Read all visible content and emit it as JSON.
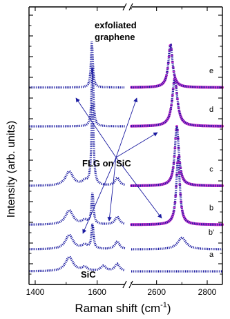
{
  "chart_data": {
    "type": "line",
    "xlabel": "Raman shift (cm",
    "xlabel_sup": "-1",
    "xlabel_close": ")",
    "ylabel": "Intensity (arb. units)",
    "x_axis_break": true,
    "segments": [
      {
        "xlim": [
          1380,
          1690
        ],
        "ticks": [
          1400,
          1600
        ]
      },
      {
        "xlim": [
          2500,
          2860
        ],
        "ticks": [
          2600,
          2800
        ]
      }
    ],
    "annotations": {
      "exfoliated_line1": "exfoliated",
      "exfoliated_line2": "graphene",
      "flg_on_sic": "FLG on SiC",
      "sic": "SiC"
    },
    "series": [
      {
        "name": "a",
        "offset": 0.0,
        "peaks1": [
          [
            1510,
            0.55,
            30
          ],
          [
            1560,
            0.15,
            20
          ],
          [
            1620,
            0.2,
            20
          ],
          [
            1665,
            0.28,
            18
          ]
        ],
        "peaks2": []
      },
      {
        "name": "b'",
        "offset": 0.85,
        "peaks1": [
          [
            1510,
            0.55,
            30
          ],
          [
            1560,
            0.15,
            20
          ],
          [
            1585,
            0.95,
            8
          ],
          [
            1665,
            0.3,
            18
          ]
        ],
        "peaks2": [
          [
            2700,
            0.45,
            40
          ]
        ]
      },
      {
        "name": "b",
        "offset": 1.8,
        "peaks1": [
          [
            1510,
            0.55,
            30
          ],
          [
            1560,
            0.15,
            20
          ],
          [
            1585,
            1.2,
            8
          ],
          [
            1665,
            0.3,
            18
          ]
        ],
        "peaks2": [
          [
            2685,
            2.6,
            17
          ]
        ]
      },
      {
        "name": "c",
        "offset": 3.3,
        "peaks1": [
          [
            1510,
            0.55,
            30
          ],
          [
            1560,
            0.15,
            20
          ],
          [
            1585,
            3.2,
            8
          ],
          [
            1665,
            0.3,
            18
          ]
        ],
        "peaks2": [
          [
            2680,
            2.3,
            19
          ]
        ]
      },
      {
        "name": "d",
        "offset": 5.6,
        "peaks1": [
          [
            1585,
            2.3,
            7
          ]
        ],
        "peaks2": [
          [
            2672,
            1.85,
            24
          ]
        ]
      },
      {
        "name": "e",
        "offset": 7.1,
        "peaks1": [
          [
            1583,
            1.8,
            7
          ]
        ],
        "peaks2": [
          [
            2655,
            1.65,
            20
          ]
        ]
      }
    ],
    "colors": {
      "data": "#1a1aa0",
      "fit": "#cc33cc",
      "arrow": "#1a1aa0"
    }
  }
}
